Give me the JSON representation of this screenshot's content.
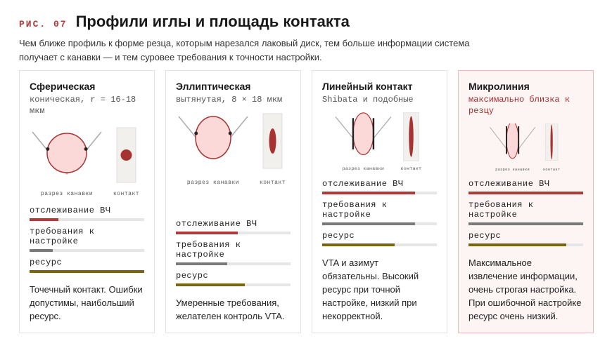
{
  "header": {
    "label": "РИС. 07",
    "title": "Профили иглы и площадь контакта",
    "subtitle": "Чем ближе профиль к форме резца, которым нарезался лаковый диск, тем больше информации система получает с канавки — и тем суровее требования к точности настройки."
  },
  "scale": [
    0,
    100
  ],
  "cards": [
    {
      "title": "Сферическая",
      "subtitle": "коническая, r = 16-18 мкм",
      "caption_groove": "разрез канавки",
      "caption_contact": "контакт",
      "metrics": [
        {
          "label": "отслеживание ВЧ",
          "value": 25,
          "color": "#b03a3a"
        },
        {
          "label": "требования к настройке",
          "value": 20,
          "color": "#7a7a7a"
        },
        {
          "label": "ресурс",
          "value": 100,
          "color": "#7a6510"
        }
      ],
      "description": "Точечный контакт. Ошибки допустимы, наибольший ресурс."
    },
    {
      "title": "Эллиптическая",
      "subtitle": "вытянутая, 8 × 18 мкм",
      "caption_groove": "разрез канавки",
      "caption_contact": "контакт",
      "metrics": [
        {
          "label": "отслеживание ВЧ",
          "value": 54,
          "color": "#b03a3a"
        },
        {
          "label": "требования к настройке",
          "value": 45,
          "color": "#7a7a7a"
        },
        {
          "label": "ресурс",
          "value": 60,
          "color": "#7a6510"
        }
      ],
      "description": "Умеренные требования, желателен контроль VTA."
    },
    {
      "title": "Линейный контакт",
      "subtitle": "Shibata и подобные",
      "caption_groove": "разрез канавки",
      "caption_contact": "контакт",
      "metrics": [
        {
          "label": "отслеживание ВЧ",
          "value": 81,
          "color": "#b03a3a"
        },
        {
          "label": "требования к настройке",
          "value": 81,
          "color": "#7a7a7a"
        },
        {
          "label": "ресурс",
          "value": 63,
          "color": "#7a6510"
        }
      ],
      "description": "VTA и азимут обязательны. Высокий ресурс при точной настройке, низкий при некорректной."
    },
    {
      "title": "Микролиния",
      "subtitle": "максимально близка к резцу",
      "caption_groove": "разрез канавки",
      "caption_contact": "контакт",
      "metrics": [
        {
          "label": "отслеживание ВЧ",
          "value": 100,
          "color": "#b03a3a"
        },
        {
          "label": "требования к настройке",
          "value": 100,
          "color": "#7a7a7a"
        },
        {
          "label": "ресурс",
          "value": 85,
          "color": "#7a6510"
        }
      ],
      "description": "Максимальное извлечение информации, очень строгая настройка. При ошибочной настройке ресурс очень низкий."
    }
  ]
}
